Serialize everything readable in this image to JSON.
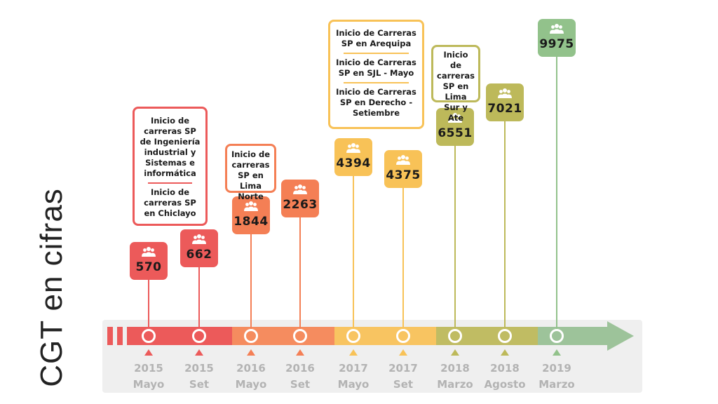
{
  "title": "CGT en cifras",
  "milestones": [
    {
      "year": "2015",
      "period": "Mayo",
      "value": "570",
      "color": "#ec5a5a"
    },
    {
      "year": "2015",
      "period": "Set",
      "value": "662",
      "color": "#ec5a5a"
    },
    {
      "year": "2016",
      "period": "Mayo",
      "value": "1844",
      "color": "#f47f55"
    },
    {
      "year": "2016",
      "period": "Set",
      "value": "2263",
      "color": "#f47f55"
    },
    {
      "year": "2017",
      "period": "Mayo",
      "value": "4394",
      "color": "#f8c257"
    },
    {
      "year": "2017",
      "period": "Set",
      "value": "4375",
      "color": "#f8c257"
    },
    {
      "year": "2018",
      "period": "Marzo",
      "value": "6551",
      "color": "#bdb95a"
    },
    {
      "year": "2018",
      "period": "Agosto",
      "value": "7021",
      "color": "#bdb95a"
    },
    {
      "year": "2019",
      "period": "Marzo",
      "value": "9975",
      "color": "#92c28b"
    }
  ],
  "notes": [
    {
      "lines": [
        "Inicio de carreras SP de Ingeniería industrial y Sistemas e informática",
        "Inicio de carreras SP en Chiclayo"
      ],
      "color": "#ec5a5a"
    },
    {
      "lines": [
        "Inicio de carreras SP en Lima Norte"
      ],
      "color": "#f47f55"
    },
    {
      "lines": [
        "Inicio de Carreras SP en Arequipa",
        "Inicio de Carreras SP en SJL - Mayo",
        "Inicio de Carreras SP en Derecho - Setiembre"
      ],
      "color": "#f8c257"
    },
    {
      "lines": [
        "Inicio de carreras SP en Lima Sur y Ate"
      ],
      "color": "#bdb95a"
    }
  ]
}
